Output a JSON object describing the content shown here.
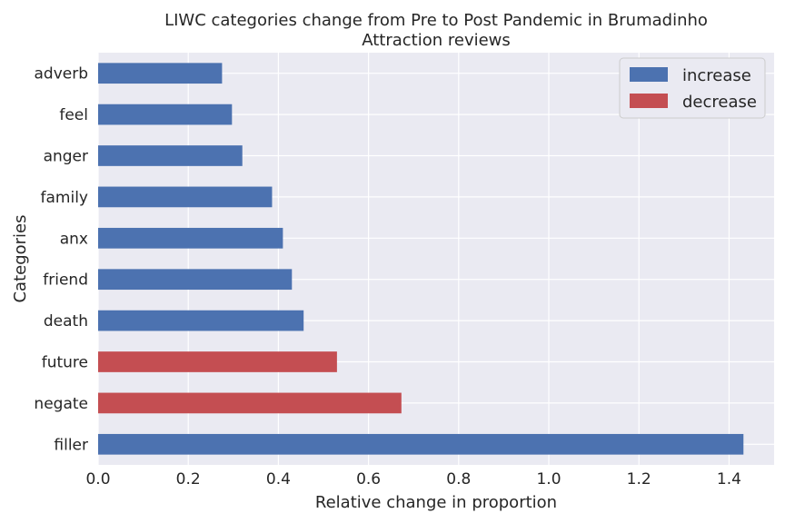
{
  "chart_data": {
    "type": "bar",
    "orientation": "horizontal",
    "title_line1": "LIWC categories change from Pre to Post Pandemic in Brumadinho",
    "title_line2": "Attraction reviews",
    "xlabel": "Relative change in proportion",
    "ylabel": "Categories",
    "xlim": [
      0,
      1.5
    ],
    "xticks": [
      "0.0",
      "0.2",
      "0.4",
      "0.6",
      "0.8",
      "1.0",
      "1.2",
      "1.4"
    ],
    "grid": true,
    "legend_position": "top-right",
    "legend": [
      {
        "label": "increase",
        "color": "#4c72b0"
      },
      {
        "label": "decrease",
        "color": "#c44e52"
      }
    ],
    "categories": [
      "adverb",
      "feel",
      "anger",
      "family",
      "anx",
      "friend",
      "death",
      "future",
      "negate",
      "filler"
    ],
    "values": [
      0.275,
      0.297,
      0.32,
      0.386,
      0.41,
      0.43,
      0.456,
      0.53,
      0.673,
      1.432
    ],
    "direction": [
      "increase",
      "increase",
      "increase",
      "increase",
      "increase",
      "increase",
      "increase",
      "decrease",
      "decrease",
      "increase"
    ]
  }
}
